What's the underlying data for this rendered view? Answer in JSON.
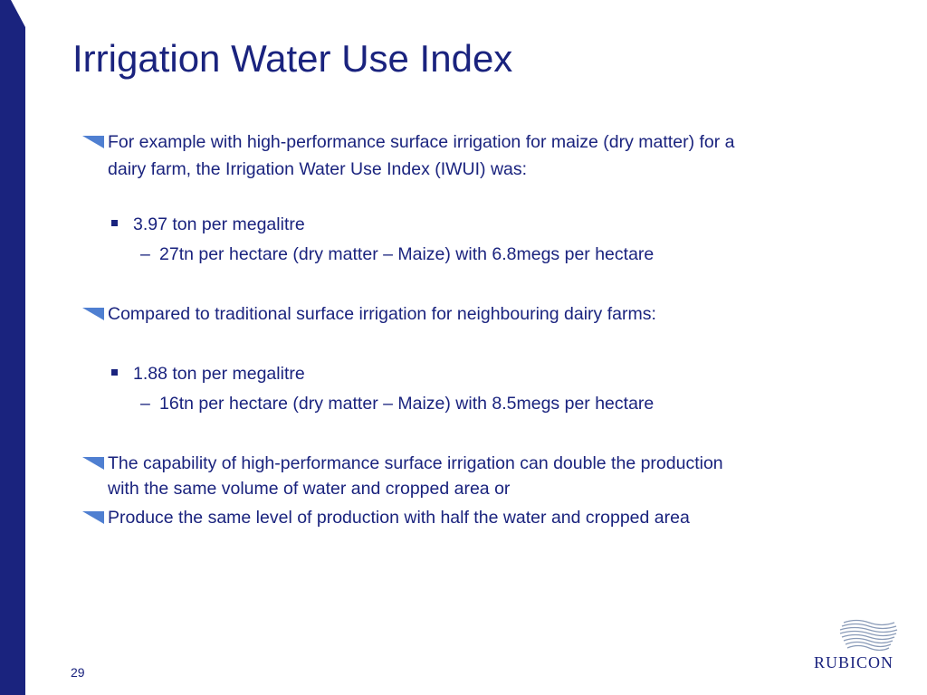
{
  "slide": {
    "title": "Irrigation Water Use Index",
    "page_number": "29",
    "accent_color": "#1a237e",
    "marker_color": "#4f7fd1"
  },
  "bullets": {
    "b1_line1": "For example with high-performance surface irrigation for maize (dry matter) for a",
    "b1_line2": "dairy farm, the Irrigation Water Use Index (IWUI) was:",
    "b1_sub": "3.97 ton per megalitre",
    "b1_subsub": "27tn per hectare (dry matter – Maize) with 6.8megs per hectare",
    "b2": "Compared to traditional surface irrigation for neighbouring dairy farms:",
    "b2_sub": "1.88 ton per megalitre",
    "b2_subsub": "16tn per hectare (dry matter – Maize) with 8.5megs per hectare",
    "b3_line1": "The capability of high-performance surface irrigation can double the production",
    "b3_line2": "with the same volume of water and cropped area or",
    "b4": "Produce the same level of production with half the water and cropped area"
  },
  "logo": {
    "text": "RUBICON",
    "icon": "wave-lines-icon"
  },
  "markers": {
    "level1": "triangle-bullet-icon",
    "level2": "square-bullet-icon",
    "level3": "–"
  }
}
